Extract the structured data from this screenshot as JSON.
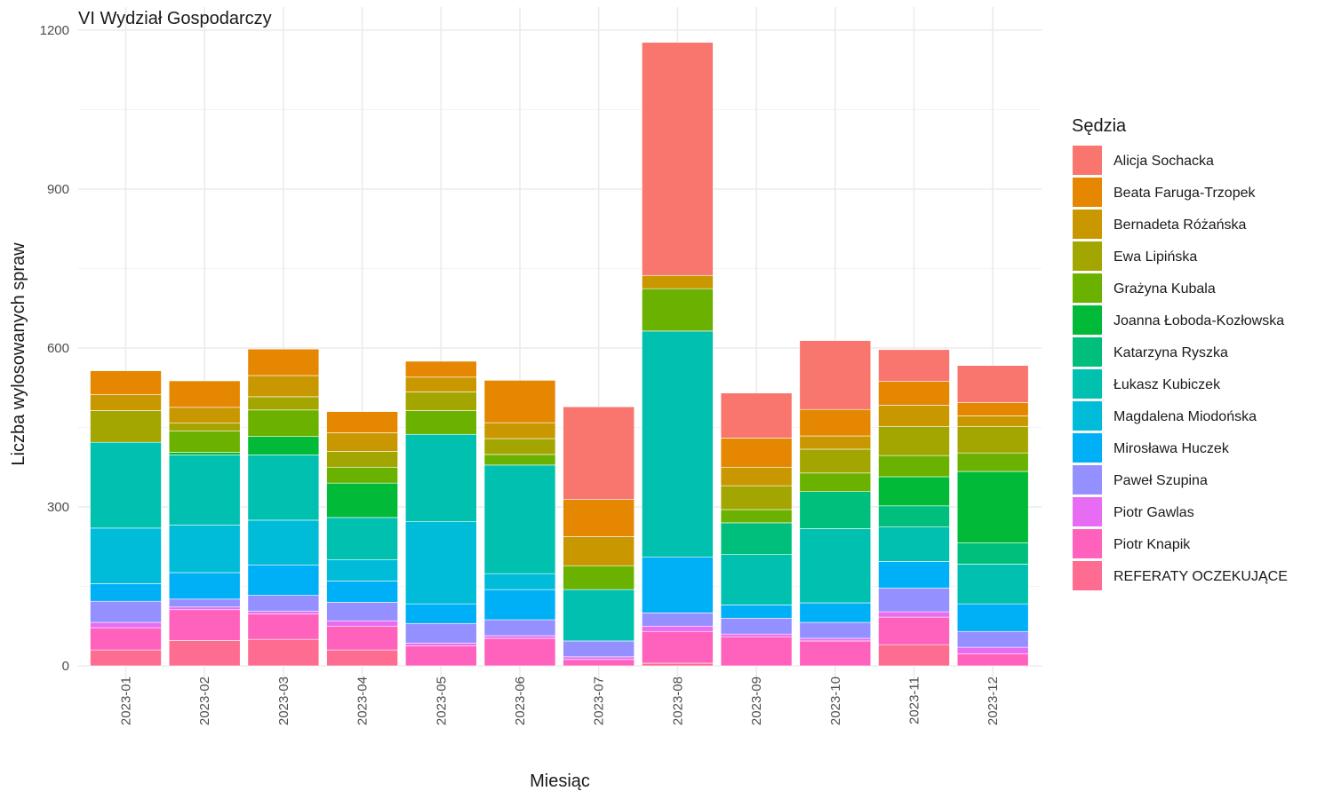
{
  "chart_data": {
    "type": "bar",
    "stacked": true,
    "title": "VI Wydział Gospodarczy",
    "xlabel": "Miesiąc",
    "ylabel": "Liczba wylosowanych spraw",
    "ylim": [
      0,
      1200
    ],
    "yticks": [
      0,
      300,
      600,
      900,
      1200
    ],
    "grid": true,
    "legend_title": "Sędzia",
    "legend_position": "right",
    "categories": [
      "2023-01",
      "2023-02",
      "2023-03",
      "2023-04",
      "2023-05",
      "2023-06",
      "2023-07",
      "2023-08",
      "2023-09",
      "2023-10",
      "2023-11",
      "2023-12"
    ],
    "series": [
      {
        "name": "Alicja Sochacka",
        "color": "#F8766D",
        "values": [
          0,
          0,
          0,
          0,
          0,
          0,
          175,
          440,
          85,
          130,
          60,
          70
        ]
      },
      {
        "name": "Beata Faruga-Trzopek",
        "color": "#E58700",
        "values": [
          45,
          50,
          50,
          40,
          30,
          80,
          70,
          0,
          55,
          50,
          45,
          25
        ]
      },
      {
        "name": "Bernadeta Różańska",
        "color": "#C99800",
        "values": [
          30,
          30,
          40,
          35,
          28,
          30,
          55,
          25,
          35,
          25,
          40,
          20
        ]
      },
      {
        "name": "Ewa Lipińska",
        "color": "#A3A500",
        "values": [
          60,
          15,
          25,
          30,
          35,
          30,
          0,
          0,
          45,
          45,
          55,
          50
        ]
      },
      {
        "name": "Grażyna Kubala",
        "color": "#6BB100",
        "values": [
          0,
          40,
          50,
          30,
          45,
          20,
          45,
          80,
          25,
          35,
          40,
          35
        ]
      },
      {
        "name": "Joanna Łoboda-Kozłowska",
        "color": "#00BA38",
        "values": [
          0,
          5,
          35,
          65,
          0,
          0,
          0,
          0,
          0,
          0,
          55,
          135
        ]
      },
      {
        "name": "Katarzyna Ryszka",
        "color": "#00BF7D",
        "values": [
          0,
          0,
          0,
          0,
          0,
          0,
          0,
          0,
          60,
          70,
          40,
          40
        ]
      },
      {
        "name": "Łukasz Kubiczek",
        "color": "#00C0AF",
        "values": [
          162,
          132,
          123,
          80,
          165,
          205,
          97,
          427,
          95,
          140,
          65,
          75
        ]
      },
      {
        "name": "Magdalena Miodońska",
        "color": "#00BCD8",
        "values": [
          105,
          90,
          85,
          40,
          155,
          30,
          0,
          0,
          0,
          0,
          0,
          0
        ]
      },
      {
        "name": "Mirosława Huczek",
        "color": "#00B0F6",
        "values": [
          33,
          50,
          57,
          40,
          37,
          57,
          0,
          105,
          25,
          37,
          50,
          52
        ]
      },
      {
        "name": "Paweł Szupina",
        "color": "#9590FF",
        "values": [
          40,
          15,
          30,
          35,
          37,
          30,
          30,
          25,
          30,
          30,
          45,
          30
        ]
      },
      {
        "name": "Piotr Gawlas",
        "color": "#E76BF3",
        "values": [
          10,
          5,
          5,
          10,
          5,
          5,
          5,
          10,
          5,
          5,
          10,
          12
        ]
      },
      {
        "name": "Piotr Knapik",
        "color": "#FF62BC",
        "values": [
          42,
          58,
          48,
          45,
          38,
          52,
          12,
          60,
          55,
          47,
          52,
          23
        ]
      },
      {
        "name": "REFERATY OCZEKUJĄCE",
        "color": "#FF6C91",
        "values": [
          30,
          48,
          50,
          30,
          0,
          0,
          0,
          5,
          0,
          0,
          40,
          0
        ]
      }
    ]
  }
}
